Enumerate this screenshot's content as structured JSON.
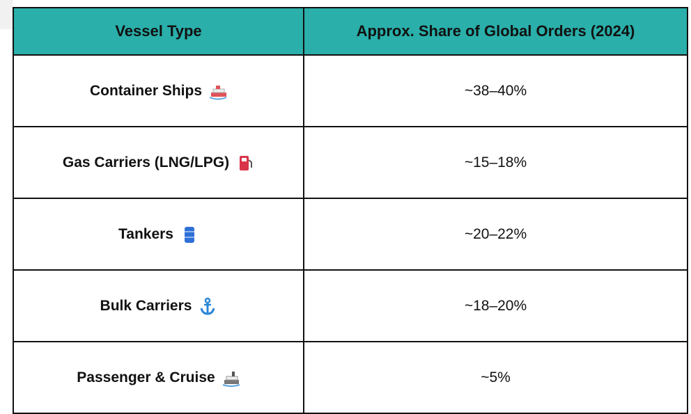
{
  "table": {
    "header": [
      "Vessel Type",
      "Approx. Share of Global Orders (2024)"
    ],
    "rows": [
      [
        "Container Ships",
        "~38–40%"
      ],
      [
        "Gas Carriers (LNG/LPG)",
        "~15–18%"
      ],
      [
        "Tankers",
        "~20–22%"
      ],
      [
        "Bulk Carriers",
        "~18–20%"
      ],
      [
        "Passenger & Cruise",
        "~5%"
      ]
    ]
  }
}
